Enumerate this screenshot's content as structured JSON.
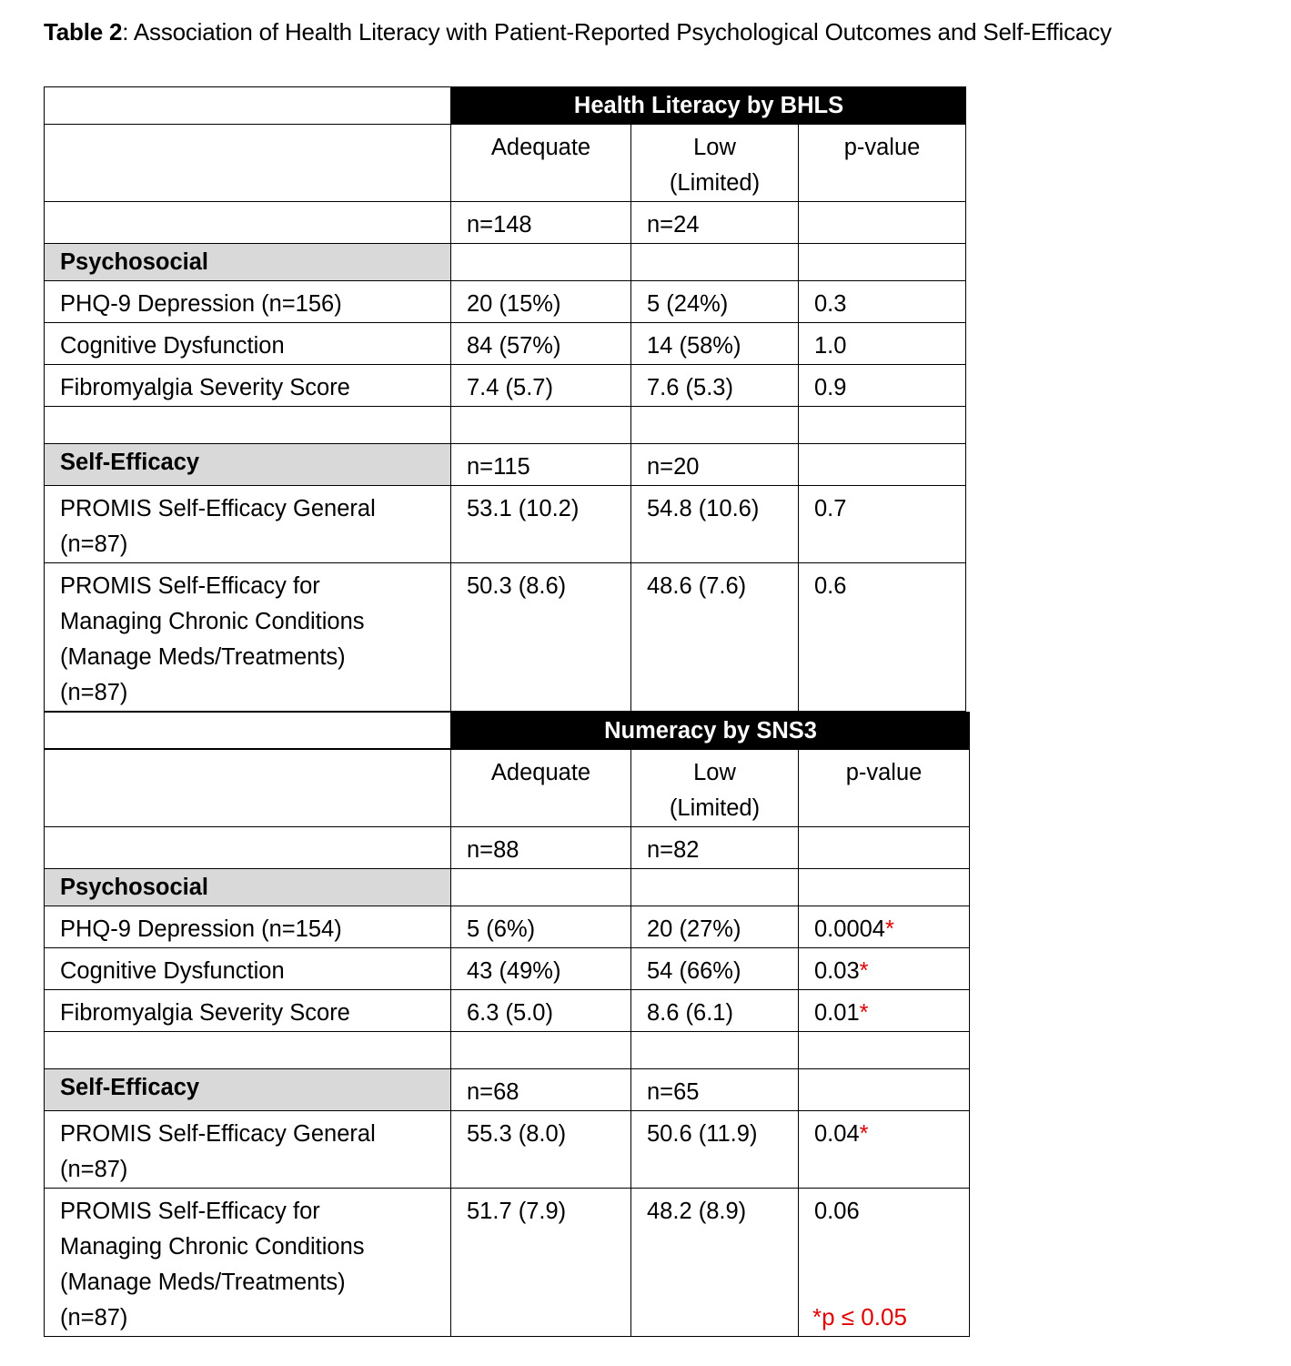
{
  "title": {
    "label": "Table 2",
    "text": ": Association of Health Literacy with Patient-Reported Psychological Outcomes and Self-Efficacy"
  },
  "colors": {
    "header_bg": "#000000",
    "section_bg": "#d9d9d9",
    "significance": "#e00000"
  },
  "sections": [
    {
      "header": "Health Literacy by BHLS",
      "columns": [
        "Adequate",
        "Low\n(Limited)",
        "p-value"
      ],
      "n": [
        "n=148",
        "n=24"
      ],
      "psychosocial_label": "Psychosocial",
      "psychosocial": [
        {
          "label": "PHQ-9 Depression (n=156)",
          "adequate": "20 (15%)",
          "low": "5 (24%)",
          "p": "0.3",
          "significant": false
        },
        {
          "label": "Cognitive Dysfunction",
          "adequate": "84 (57%)",
          "low": "14 (58%)",
          "p": "1.0",
          "significant": false
        },
        {
          "label": "Fibromyalgia Severity Score",
          "adequate": "7.4 (5.7)",
          "low": "7.6 (5.3)",
          "p": "0.9",
          "significant": false
        }
      ],
      "self_efficacy_label": "Self-Efficacy",
      "self_efficacy_n": [
        "n=115",
        "n=20"
      ],
      "self_efficacy": [
        {
          "label": "PROMIS Self-Efficacy General\n(n=87)",
          "adequate": "53.1 (10.2)",
          "low": "54.8 (10.6)",
          "p": "0.7",
          "significant": false
        },
        {
          "label": "PROMIS Self-Efficacy for\nManaging Chronic Conditions\n(Manage Meds/Treatments)\n(n=87)",
          "adequate": "50.3 (8.6)",
          "low": "48.6 (7.6)",
          "p": "0.6",
          "significant": false
        }
      ]
    },
    {
      "header": "Numeracy by SNS3",
      "columns": [
        "Adequate",
        "Low\n(Limited)",
        "p-value"
      ],
      "n": [
        "n=88",
        "n=82"
      ],
      "psychosocial_label": "Psychosocial",
      "psychosocial": [
        {
          "label": "PHQ-9 Depression (n=154)",
          "adequate": "5 (6%)",
          "low": "20 (27%)",
          "p": "0.0004",
          "significant": true
        },
        {
          "label": "Cognitive Dysfunction",
          "adequate": "43 (49%)",
          "low": "54 (66%)",
          "p": "0.03",
          "significant": true
        },
        {
          "label": "Fibromyalgia Severity Score",
          "adequate": "6.3 (5.0)",
          "low": "8.6 (6.1)",
          "p": "0.01",
          "significant": true
        }
      ],
      "self_efficacy_label": "Self-Efficacy",
      "self_efficacy_n": [
        "n=68",
        "n=65"
      ],
      "self_efficacy": [
        {
          "label": "PROMIS Self-Efficacy General\n(n=87)",
          "adequate": "55.3 (8.0)",
          "low": "50.6 (11.9)",
          "p": "0.04",
          "significant": true
        },
        {
          "label": "PROMIS Self-Efficacy for\nManaging Chronic Conditions\n(Manage Meds/Treatments)\n(n=87)",
          "adequate": "51.7 (7.9)",
          "low": "48.2 (8.9)",
          "p": "0.06",
          "significant": false
        }
      ]
    }
  ],
  "significance_marker": "*",
  "footnote": "*p ≤ 0.05"
}
